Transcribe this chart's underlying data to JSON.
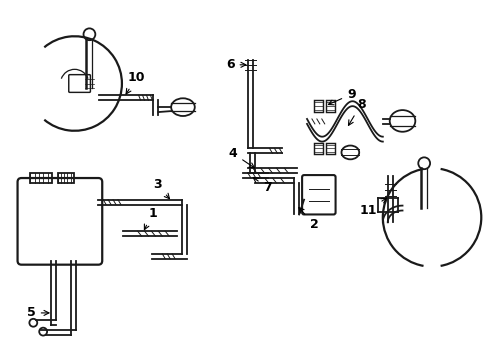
{
  "background_color": "#ffffff",
  "line_color": "#1a1a1a",
  "lw": 1.3,
  "fig_width": 4.89,
  "fig_height": 3.6,
  "dpi": 100
}
